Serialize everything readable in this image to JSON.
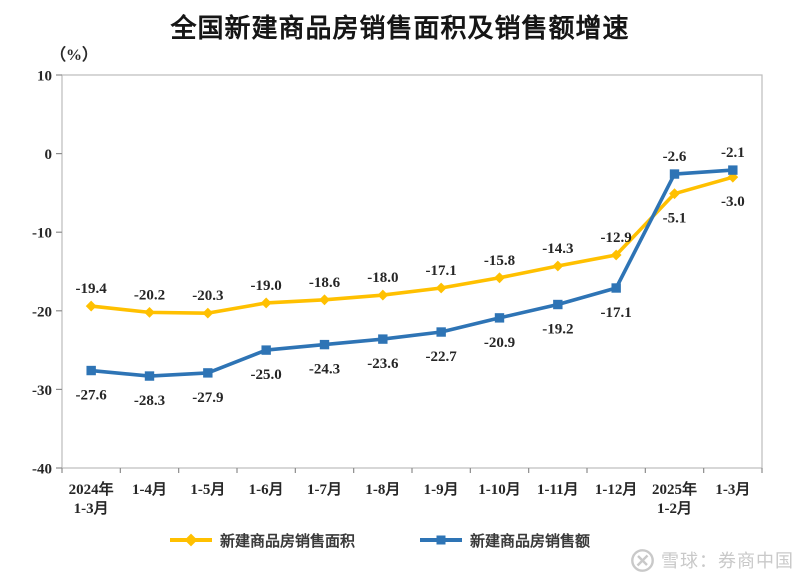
{
  "page": {
    "title": "全国新建商品房销售面积及销售额增速",
    "unit_label": "（%）",
    "watermark": "雪球：券商中国"
  },
  "colors": {
    "area_series": "#FFC000",
    "amount_series": "#2E74B5",
    "axis": "#8c8c8c",
    "plot_border": "#bcbcbc",
    "label_text": "#262626",
    "watermark": "#c9c9c9"
  },
  "legend": {
    "items": [
      {
        "label": "新建商品房销售面积",
        "color": "#FFC000",
        "marker": "diamond"
      },
      {
        "label": "新建商品房销售额",
        "color": "#2E74B5",
        "marker": "square"
      }
    ]
  },
  "chart_data": {
    "type": "line",
    "title": "全国新建商品房销售面积及销售额增速",
    "ylabel": "（%）",
    "xlabel": "",
    "grid": false,
    "legend_position": "bottom",
    "ylim": [
      -40,
      10
    ],
    "yticks": [
      10,
      0,
      -10,
      -20,
      -30,
      -40
    ],
    "categories": [
      "2024年\n1-3月",
      "1-4月",
      "1-5月",
      "1-6月",
      "1-7月",
      "1-8月",
      "1-9月",
      "1-10月",
      "1-11月",
      "1-12月",
      "2025年\n1-2月",
      "1-3月"
    ],
    "series": [
      {
        "name": "新建商品房销售面积",
        "color": "#FFC000",
        "marker": "diamond",
        "values": [
          -19.4,
          -20.2,
          -20.3,
          -19.0,
          -18.6,
          -18.0,
          -17.1,
          -15.8,
          -14.3,
          -12.9,
          -5.1,
          -3.0
        ],
        "label_side": [
          "above",
          "above",
          "above",
          "above",
          "above",
          "above",
          "above",
          "above",
          "above",
          "above",
          "below",
          "below"
        ]
      },
      {
        "name": "新建商品房销售额",
        "color": "#2E74B5",
        "marker": "square",
        "values": [
          -27.6,
          -28.3,
          -27.9,
          -25.0,
          -24.3,
          -23.6,
          -22.7,
          -20.9,
          -19.2,
          -17.1,
          -2.6,
          -2.1
        ],
        "label_side": [
          "below",
          "below",
          "below",
          "below",
          "below",
          "below",
          "below",
          "below",
          "below",
          "below",
          "above",
          "above"
        ]
      }
    ]
  }
}
